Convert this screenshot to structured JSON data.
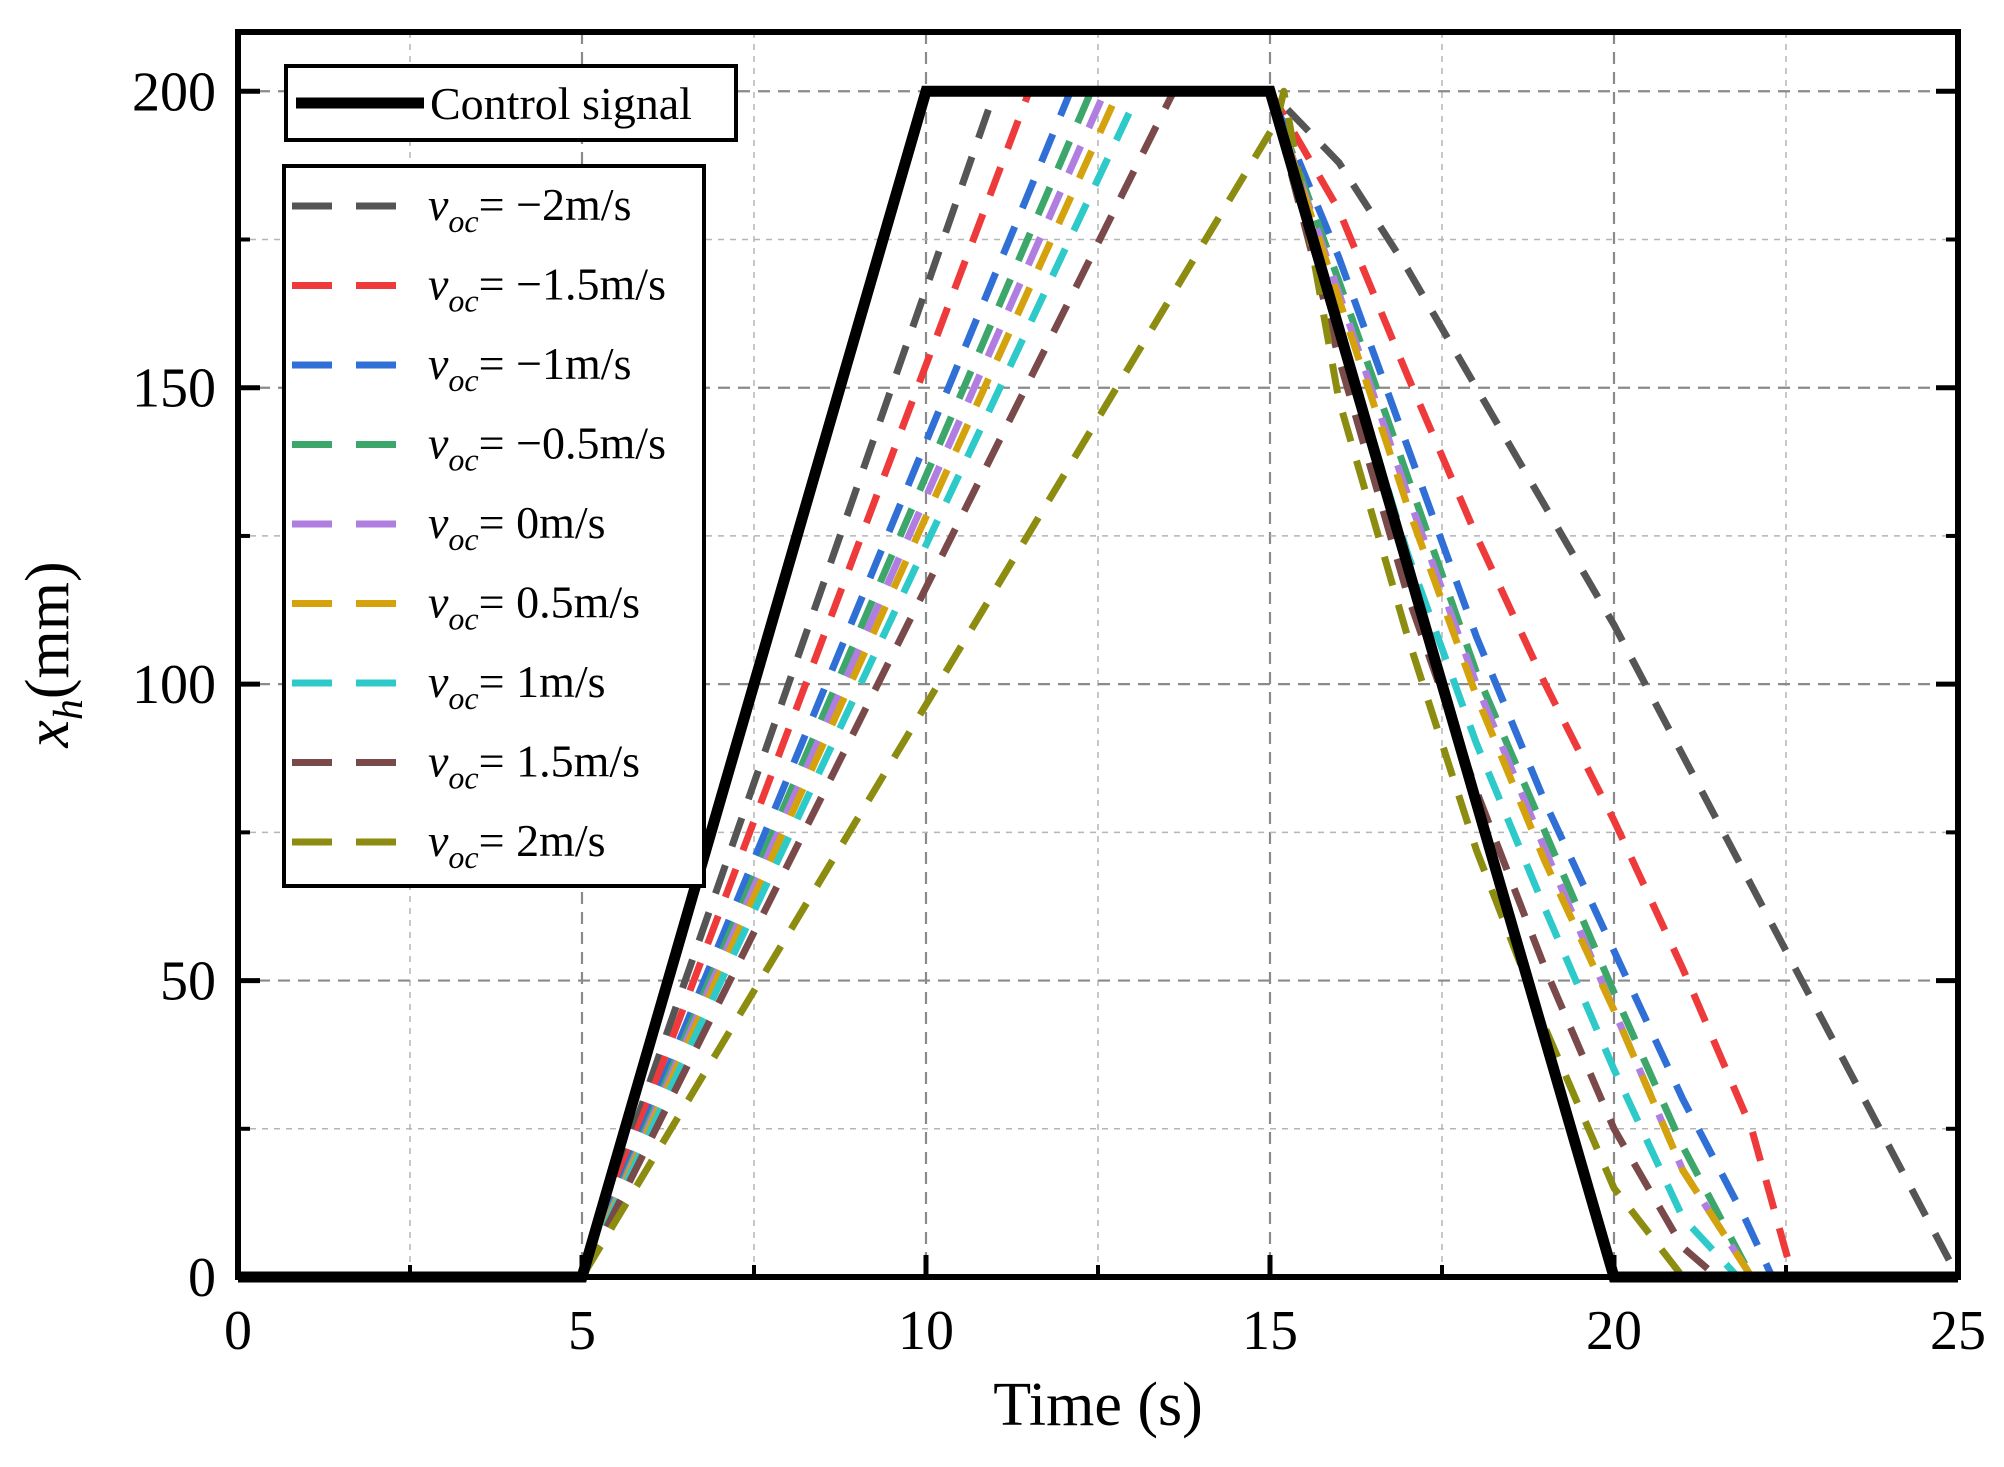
{
  "chart_data": {
    "type": "line",
    "title": "",
    "xlabel": "Time (s)",
    "ylabel": {
      "base": "x",
      "sub": "h",
      "unit": "(mm)"
    },
    "xlim": [
      0,
      25
    ],
    "ylim": [
      0,
      210
    ],
    "xticks": [
      0,
      5,
      10,
      15,
      20,
      25
    ],
    "yticks": [
      0,
      50,
      100,
      150,
      200
    ],
    "xtick_labels": [
      "0",
      "5",
      "10",
      "15",
      "20",
      "25"
    ],
    "ytick_labels": [
      "0",
      "50",
      "100",
      "150",
      "200"
    ],
    "grid": true,
    "legend_position": "top-left",
    "control": {
      "name": "Control signal",
      "color": "#000000",
      "x": [
        0,
        5,
        10,
        15,
        20,
        25
      ],
      "y": [
        0,
        0,
        200,
        200,
        0,
        0
      ]
    },
    "series": [
      {
        "name": "v_oc = -2m/s",
        "var": "v",
        "sub": "oc",
        "value_text": "= −2m/s",
        "color": "#555555",
        "x": [
          0,
          5,
          11,
          15,
          16,
          17,
          18,
          19,
          20,
          21,
          22,
          23,
          24,
          25
        ],
        "y": [
          0,
          0,
          200,
          200,
          188,
          170,
          150,
          130,
          110,
          88,
          66,
          44,
          22,
          0
        ]
      },
      {
        "name": "v_oc = -1.5m/s",
        "var": "v",
        "sub": "oc",
        "value_text": "= −1.5m/s",
        "color": "#ee3a3a",
        "x": [
          0,
          5,
          11.5,
          15,
          16,
          17,
          18,
          19,
          20,
          21,
          22,
          22.6,
          25
        ],
        "y": [
          0,
          0,
          200,
          200,
          180,
          152,
          125,
          100,
          77,
          52,
          25,
          0,
          0
        ]
      },
      {
        "name": "v_oc = -1m/s",
        "var": "v",
        "sub": "oc",
        "value_text": "= −1m/s",
        "color": "#2f6fd6",
        "x": [
          0,
          5,
          12.1,
          15,
          16,
          17,
          18,
          19,
          20,
          21,
          21.9,
          22.3,
          25
        ],
        "y": [
          0,
          0,
          200,
          200,
          172,
          140,
          108,
          80,
          55,
          30,
          10,
          0,
          0
        ]
      },
      {
        "name": "v_oc = -0.5m/s",
        "var": "v",
        "sub": "oc",
        "value_text": "= −0.5m/s",
        "color": "#3da66a",
        "x": [
          0,
          5,
          12.4,
          15,
          16,
          17,
          18,
          19,
          20,
          21,
          22,
          25
        ],
        "y": [
          0,
          0,
          200,
          200,
          168,
          135,
          102,
          75,
          48,
          22,
          0,
          0
        ]
      },
      {
        "name": "v_oc = 0m/s",
        "var": "v",
        "sub": "oc",
        "value_text": "= 0m/s",
        "color": "#b07ee0",
        "x": [
          0,
          5,
          12.6,
          15,
          16,
          17,
          18,
          19,
          20,
          21,
          22,
          25
        ],
        "y": [
          0,
          0,
          200,
          200,
          166,
          132,
          100,
          72,
          45,
          18,
          0,
          0
        ]
      },
      {
        "name": "v_oc = 0.5m/s",
        "var": "v",
        "sub": "oc",
        "value_text": "= 0.5m/s",
        "color": "#d4a20c",
        "x": [
          0,
          5,
          12.8,
          15,
          16,
          17,
          18,
          19,
          20,
          21,
          22,
          25
        ],
        "y": [
          0,
          0,
          200,
          200,
          165,
          130,
          98,
          70,
          45,
          18,
          0,
          0
        ]
      },
      {
        "name": "v_oc = 1m/s",
        "var": "v",
        "sub": "oc",
        "value_text": "= 1m/s",
        "color": "#2ec9c9",
        "x": [
          0,
          5,
          13.1,
          15,
          16,
          17,
          18,
          19,
          20,
          21,
          21.8,
          25
        ],
        "y": [
          0,
          0,
          200,
          200,
          160,
          122,
          90,
          62,
          35,
          10,
          0,
          0
        ]
      },
      {
        "name": "v_oc = 1.5m/s",
        "var": "v",
        "sub": "oc",
        "value_text": "= 1.5m/s",
        "color": "#7a4a4a",
        "x": [
          0,
          5,
          13.6,
          15,
          16,
          17,
          18,
          19,
          20,
          21,
          21.5,
          25
        ],
        "y": [
          0,
          0,
          200,
          200,
          155,
          115,
          82,
          52,
          25,
          5,
          0,
          0
        ]
      },
      {
        "name": "v_oc = 2m/s",
        "var": "v",
        "sub": "oc",
        "value_text": "= 2m/s",
        "color": "#8c8c10",
        "x": [
          0,
          5,
          15.1,
          15.2,
          16,
          17,
          18,
          19,
          20,
          21,
          25
        ],
        "y": [
          0,
          0,
          195,
          200,
          148,
          108,
          72,
          42,
          15,
          0,
          0
        ]
      }
    ]
  }
}
